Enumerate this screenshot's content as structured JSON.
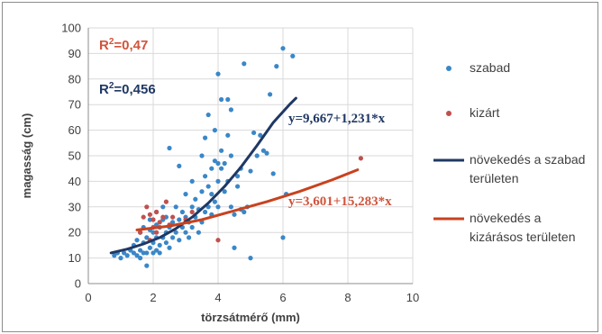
{
  "chart_data": {
    "type": "scatter",
    "xlabel": "törzsátmérő (mm)",
    "ylabel": "magasság (cm)",
    "xlim": [
      0,
      10
    ],
    "ylim": [
      0,
      100
    ],
    "xticks": [
      "0",
      "2",
      "4",
      "6",
      "8",
      "10"
    ],
    "yticks": [
      "0",
      "10",
      "20",
      "30",
      "40",
      "50",
      "60",
      "70",
      "80",
      "90",
      "100"
    ],
    "grid": true,
    "legend_position": "right",
    "series": [
      {
        "name": "szabad",
        "kind": "scatter",
        "color": "#3a87c8",
        "points": [
          [
            0.8,
            11
          ],
          [
            0.9,
            12
          ],
          [
            1.0,
            10
          ],
          [
            1.1,
            12
          ],
          [
            1.2,
            11
          ],
          [
            1.3,
            13
          ],
          [
            1.4,
            12
          ],
          [
            1.4,
            15
          ],
          [
            1.5,
            11
          ],
          [
            1.5,
            17
          ],
          [
            1.6,
            10
          ],
          [
            1.6,
            13
          ],
          [
            1.6,
            20
          ],
          [
            1.7,
            12
          ],
          [
            1.7,
            16
          ],
          [
            1.7,
            22
          ],
          [
            1.8,
            7
          ],
          [
            1.8,
            12
          ],
          [
            1.8,
            18
          ],
          [
            1.9,
            14
          ],
          [
            1.9,
            21
          ],
          [
            1.9,
            25
          ],
          [
            2.0,
            12
          ],
          [
            2.0,
            16
          ],
          [
            2.0,
            20
          ],
          [
            2.1,
            13
          ],
          [
            2.1,
            18
          ],
          [
            2.1,
            23
          ],
          [
            2.1,
            28
          ],
          [
            2.2,
            12
          ],
          [
            2.2,
            15
          ],
          [
            2.2,
            22
          ],
          [
            2.3,
            18
          ],
          [
            2.3,
            25
          ],
          [
            2.3,
            30
          ],
          [
            2.4,
            16
          ],
          [
            2.4,
            20
          ],
          [
            2.4,
            26
          ],
          [
            2.5,
            14
          ],
          [
            2.5,
            22
          ],
          [
            2.5,
            53
          ],
          [
            2.6,
            18
          ],
          [
            2.6,
            24
          ],
          [
            2.7,
            20
          ],
          [
            2.7,
            30
          ],
          [
            2.8,
            17
          ],
          [
            2.8,
            25
          ],
          [
            2.8,
            46
          ],
          [
            2.9,
            22
          ],
          [
            2.9,
            28
          ],
          [
            3.0,
            20
          ],
          [
            3.0,
            26
          ],
          [
            3.0,
            35
          ],
          [
            3.1,
            18
          ],
          [
            3.1,
            24
          ],
          [
            3.2,
            22
          ],
          [
            3.2,
            30
          ],
          [
            3.2,
            40
          ],
          [
            3.3,
            26
          ],
          [
            3.3,
            33
          ],
          [
            3.4,
            20
          ],
          [
            3.4,
            29
          ],
          [
            3.5,
            24
          ],
          [
            3.5,
            36
          ],
          [
            3.5,
            50
          ],
          [
            3.6,
            28
          ],
          [
            3.6,
            42
          ],
          [
            3.6,
            57
          ],
          [
            3.7,
            30
          ],
          [
            3.7,
            38
          ],
          [
            3.7,
            66
          ],
          [
            3.8,
            27
          ],
          [
            3.8,
            35
          ],
          [
            3.8,
            45
          ],
          [
            3.9,
            32
          ],
          [
            3.9,
            48
          ],
          [
            3.9,
            60
          ],
          [
            4.0,
            30
          ],
          [
            4.0,
            40
          ],
          [
            4.0,
            47
          ],
          [
            4.0,
            82
          ],
          [
            4.1,
            45
          ],
          [
            4.1,
            52
          ],
          [
            4.1,
            72
          ],
          [
            4.2,
            36
          ],
          [
            4.2,
            47
          ],
          [
            4.3,
            40
          ],
          [
            4.3,
            58
          ],
          [
            4.3,
            72
          ],
          [
            4.4,
            30
          ],
          [
            4.4,
            50
          ],
          [
            4.4,
            68
          ],
          [
            4.5,
            14
          ],
          [
            4.5,
            27
          ],
          [
            4.6,
            38
          ],
          [
            4.6,
            42
          ],
          [
            4.7,
            29
          ],
          [
            4.7,
            45
          ],
          [
            4.8,
            28
          ],
          [
            4.8,
            86
          ],
          [
            4.9,
            30
          ],
          [
            5.0,
            10
          ],
          [
            5.0,
            44
          ],
          [
            5.1,
            59
          ],
          [
            5.2,
            50
          ],
          [
            5.3,
            58
          ],
          [
            5.4,
            52
          ],
          [
            5.5,
            51
          ],
          [
            5.6,
            74
          ],
          [
            5.7,
            43
          ],
          [
            5.8,
            85
          ],
          [
            6.0,
            18
          ],
          [
            6.0,
            92
          ],
          [
            6.1,
            35
          ],
          [
            6.3,
            89
          ]
        ]
      },
      {
        "name": "kizárt",
        "kind": "scatter",
        "color": "#c0504d",
        "points": [
          [
            1.6,
            20
          ],
          [
            1.7,
            26
          ],
          [
            1.8,
            30
          ],
          [
            1.9,
            17
          ],
          [
            1.9,
            27
          ],
          [
            2.0,
            22
          ],
          [
            2.0,
            25
          ],
          [
            2.1,
            28
          ],
          [
            2.1,
            20
          ],
          [
            2.2,
            24
          ],
          [
            2.3,
            26
          ],
          [
            2.4,
            32
          ],
          [
            2.5,
            23
          ],
          [
            2.6,
            26
          ],
          [
            3.0,
            25
          ],
          [
            3.2,
            28
          ],
          [
            4.0,
            17
          ],
          [
            8.4,
            49
          ]
        ]
      },
      {
        "name": "növekedés a szabad területen",
        "kind": "line",
        "color": "#1f3864",
        "points": [
          [
            0.7,
            12
          ],
          [
            1.2,
            13.5
          ],
          [
            1.7,
            15.5
          ],
          [
            2.2,
            18
          ],
          [
            2.7,
            21.5
          ],
          [
            3.2,
            26
          ],
          [
            3.7,
            31.5
          ],
          [
            4.2,
            38
          ],
          [
            4.7,
            45.5
          ],
          [
            5.2,
            54
          ],
          [
            5.7,
            63
          ],
          [
            6.2,
            70
          ],
          [
            6.4,
            72.5
          ]
        ]
      },
      {
        "name": "növekedés a kizárásos területen",
        "kind": "line",
        "color": "#c8421e",
        "points": [
          [
            1.5,
            21
          ],
          [
            2.5,
            22.5
          ],
          [
            3.5,
            25
          ],
          [
            4.5,
            28.5
          ],
          [
            5.5,
            32
          ],
          [
            6.5,
            36
          ],
          [
            7.5,
            40.5
          ],
          [
            8.3,
            44.5
          ]
        ]
      }
    ],
    "annotations": {
      "r2_red": {
        "base": "R",
        "sup": "2",
        "rest": "=0,47",
        "color": "#d0543c"
      },
      "r2_blue": {
        "base": "R",
        "sup": "2",
        "rest": "=0,456",
        "color": "#1f3864"
      },
      "eq_blue": {
        "text": "y=9,667+1,231*x",
        "color": "#1f3864"
      },
      "eq_red": {
        "text": "y=3,601+15,283*x",
        "color": "#d0543c"
      }
    },
    "legend": [
      {
        "kind": "marker",
        "lines": [
          "szabad"
        ],
        "color": "#3a87c8"
      },
      {
        "kind": "marker",
        "lines": [
          "kizárt"
        ],
        "color": "#c0504d"
      },
      {
        "kind": "line",
        "lines": [
          "növekedés a szabad",
          "területen"
        ],
        "color": "#1f3864"
      },
      {
        "kind": "line",
        "lines": [
          "növekedés a",
          "kizárásos területen"
        ],
        "color": "#c8421e"
      }
    ]
  }
}
